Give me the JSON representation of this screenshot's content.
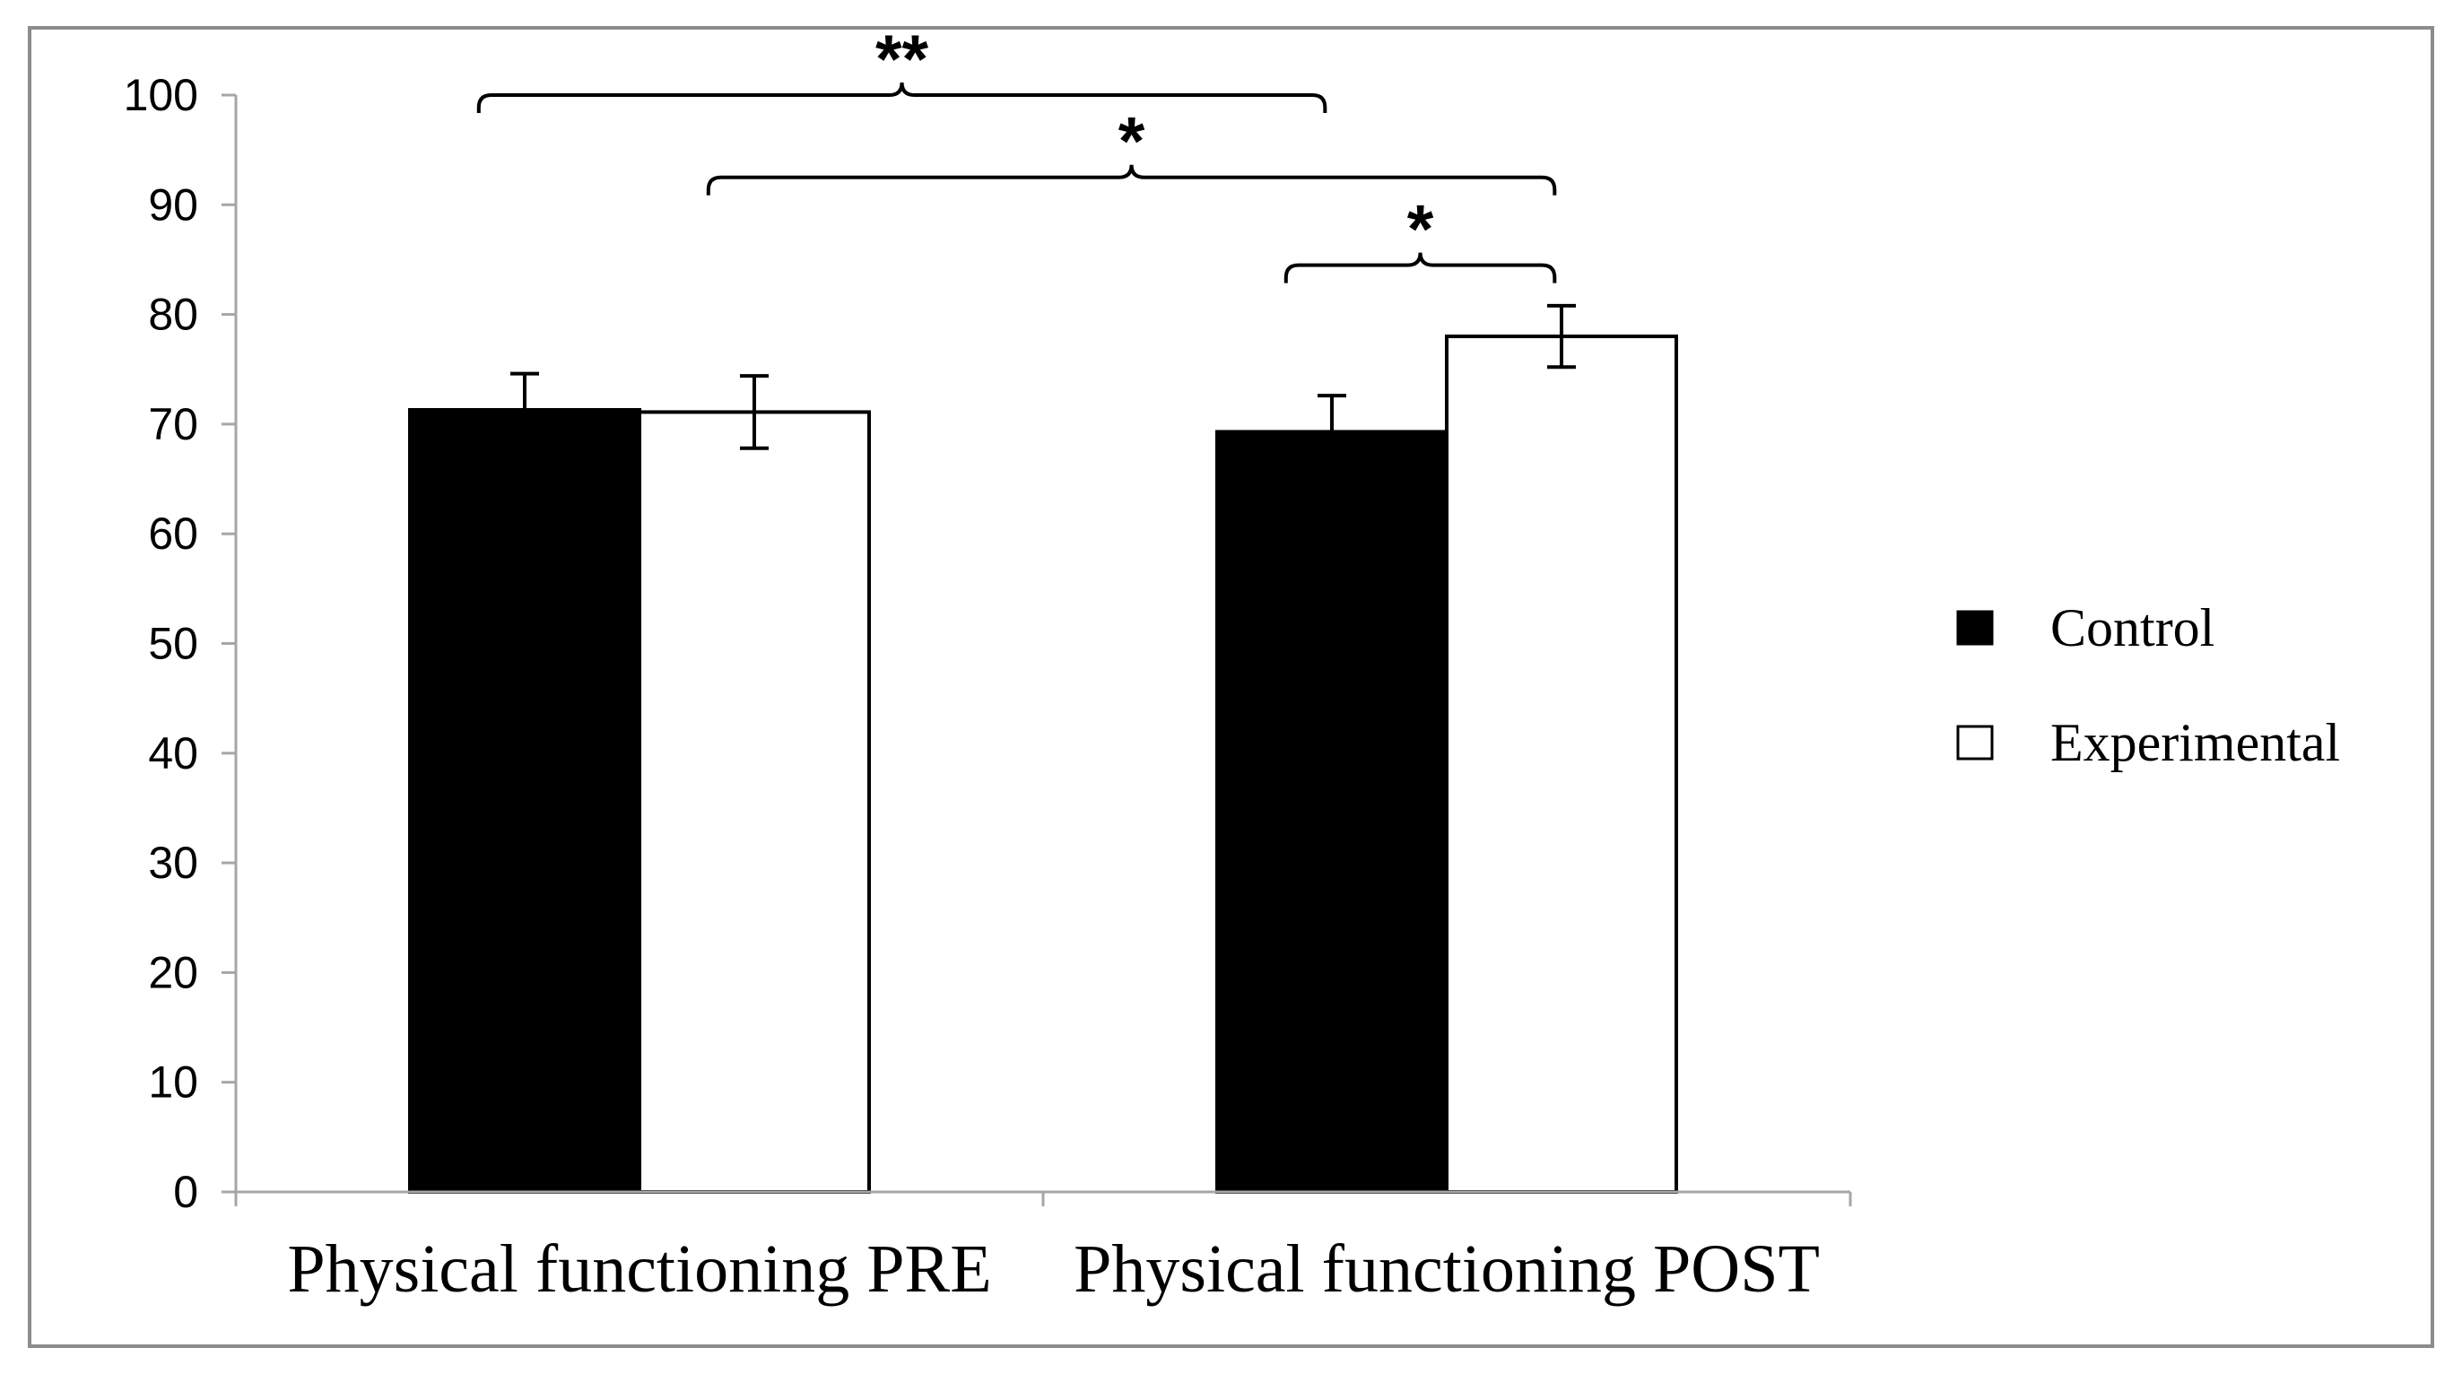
{
  "chart_data": {
    "type": "bar",
    "title": "",
    "xlabel": "",
    "ylabel": "",
    "ylim": [
      0,
      100
    ],
    "yticks": [
      0,
      10,
      20,
      30,
      40,
      50,
      60,
      70,
      80,
      90,
      100
    ],
    "grid": false,
    "legend_position": "right",
    "categories": [
      "Physical functioning PRE",
      "Physical functioning POST"
    ],
    "series": [
      {
        "name": "Control",
        "color": "#000000",
        "values": [
          71.3,
          69.3
        ],
        "errors": [
          3.3,
          3.3
        ]
      },
      {
        "name": "Experimental",
        "color": "#ffffff",
        "values": [
          71.1,
          78.0
        ],
        "errors": [
          3.3,
          2.8
        ]
      }
    ],
    "significance": [
      {
        "label": "**",
        "from": {
          "series": 0,
          "category": 0
        },
        "to": {
          "series": 0,
          "category": 1
        },
        "level": 100
      },
      {
        "label": "*",
        "from": {
          "series": 1,
          "category": 0
        },
        "to": {
          "series": 1,
          "category": 1
        },
        "level": 92.5
      },
      {
        "label": "*",
        "from": {
          "series": 0,
          "category": 1
        },
        "to": {
          "series": 1,
          "category": 1
        },
        "level": 84.5
      }
    ]
  }
}
